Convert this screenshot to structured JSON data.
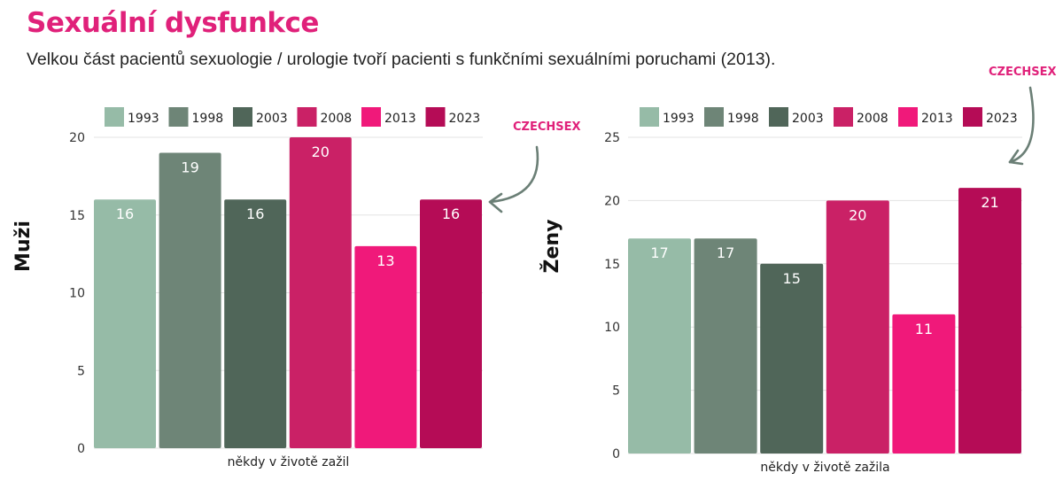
{
  "title": "Sexuální dysfunkce",
  "subtitle": "Velkou část pacientů sexuologie / urologie tvoří pacienti s funkčními sexuálními poruchami (2013).",
  "brand": "CZECHSEX",
  "colors": {
    "accent": "#e0217a",
    "arrow": "#6b7f76",
    "1993": "#96bba7",
    "1998": "#6e8577",
    "2003": "#506659",
    "2008": "#ca2166",
    "2013": "#f0197a",
    "2023": "#b50c56"
  },
  "chart_data": [
    {
      "type": "bar",
      "ylabel": "Muži",
      "xlabel": "někdy v životě zažil",
      "categories": [
        "někdy v životě zažil"
      ],
      "ylim": [
        0,
        20
      ],
      "yticks": [
        0,
        5,
        10,
        15,
        20
      ],
      "legend_position": "top",
      "grid": true,
      "series": [
        {
          "name": "1993",
          "values": [
            16
          ]
        },
        {
          "name": "1998",
          "values": [
            19
          ]
        },
        {
          "name": "2003",
          "values": [
            16
          ]
        },
        {
          "name": "2008",
          "values": [
            20
          ]
        },
        {
          "name": "2013",
          "values": [
            13
          ]
        },
        {
          "name": "2023",
          "values": [
            16
          ]
        }
      ]
    },
    {
      "type": "bar",
      "ylabel": "Ženy",
      "xlabel": "někdy v životě zažila",
      "categories": [
        "někdy v životě zažila"
      ],
      "ylim": [
        0,
        25
      ],
      "yticks": [
        0,
        5,
        10,
        15,
        20,
        25
      ],
      "legend_position": "top",
      "grid": true,
      "series": [
        {
          "name": "1993",
          "values": [
            17
          ]
        },
        {
          "name": "1998",
          "values": [
            17
          ]
        },
        {
          "name": "2003",
          "values": [
            15
          ]
        },
        {
          "name": "2008",
          "values": [
            20
          ]
        },
        {
          "name": "2013",
          "values": [
            11
          ]
        },
        {
          "name": "2023",
          "values": [
            21
          ]
        }
      ]
    }
  ]
}
